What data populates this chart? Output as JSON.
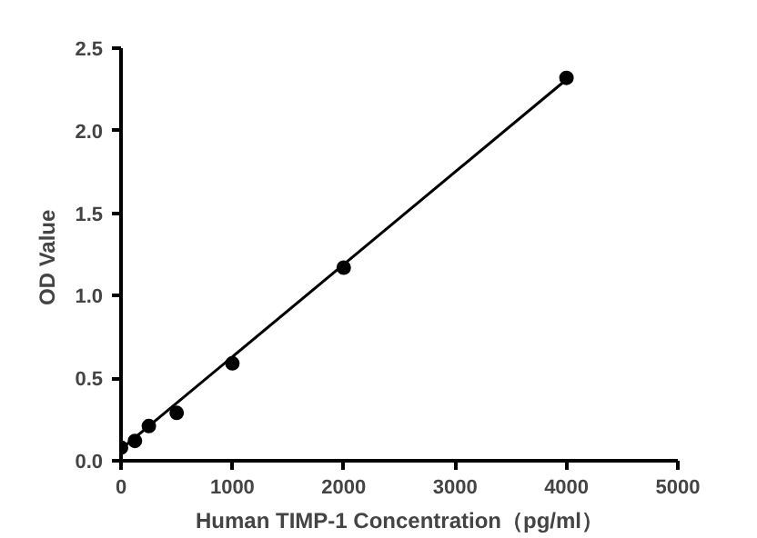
{
  "chart_data": {
    "type": "scatter",
    "xlabel": "Human TIMP-1 Concentration（pg/ml）",
    "ylabel": "OD  Value",
    "x": [
      0,
      125,
      250,
      500,
      1000,
      2000,
      4000
    ],
    "series": [
      {
        "color": "#000000",
        "marker": "circle",
        "values": [
          0.08,
          0.12,
          0.21,
          0.29,
          0.59,
          1.17,
          2.32
        ]
      },
      {
        "type": "line",
        "color": "#000000",
        "marker": "none",
        "x": [
          0,
          4000
        ],
        "values": [
          0.07,
          2.31
        ]
      }
    ],
    "xlim": [
      0,
      5000
    ],
    "ylim": [
      0,
      2.5
    ],
    "xticks": [
      0,
      1000,
      2000,
      3000,
      4000,
      5000
    ],
    "yticks": [
      {
        "value": 0,
        "label": "0.0"
      },
      0.5,
      {
        "value": 1,
        "label": "1.0"
      },
      1.5,
      {
        "value": 2,
        "label": "2.0"
      },
      2.5
    ],
    "grid": false
  }
}
